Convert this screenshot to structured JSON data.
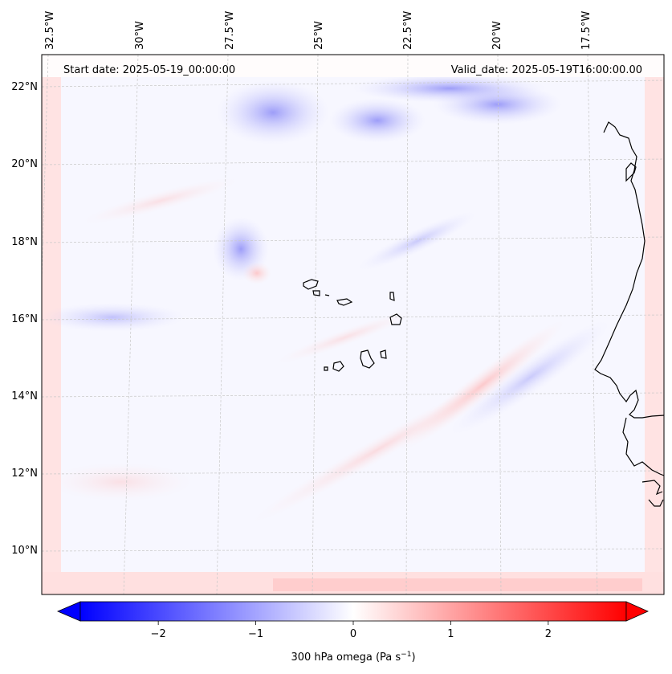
{
  "map": {
    "start_date": "Start date: 2025-05-19_00:00:00",
    "valid_date": "Valid_date: 2025-05-19T16:00:00.00",
    "lon_labels": [
      "32.5°W",
      "30°W",
      "27.5°W",
      "25°W",
      "22.5°W",
      "20°W",
      "17.5°W"
    ],
    "lat_labels": [
      "22°N",
      "20°N",
      "18°N",
      "16°N",
      "14°N",
      "12°N",
      "10°N"
    ],
    "variable": "300 hPa omega (Pa s",
    "unit_exp": "−1",
    "unit_close": ")"
  },
  "colorbar": {
    "ticks": [
      "−2",
      "−1",
      "0",
      "1",
      "2"
    ],
    "tick_values": [
      -2,
      -1,
      0,
      1,
      2
    ],
    "range": [
      -2.8,
      2.8
    ],
    "colors": {
      "negative": "#0000ff",
      "zero": "#ffffff",
      "positive": "#ff0000"
    }
  }
}
